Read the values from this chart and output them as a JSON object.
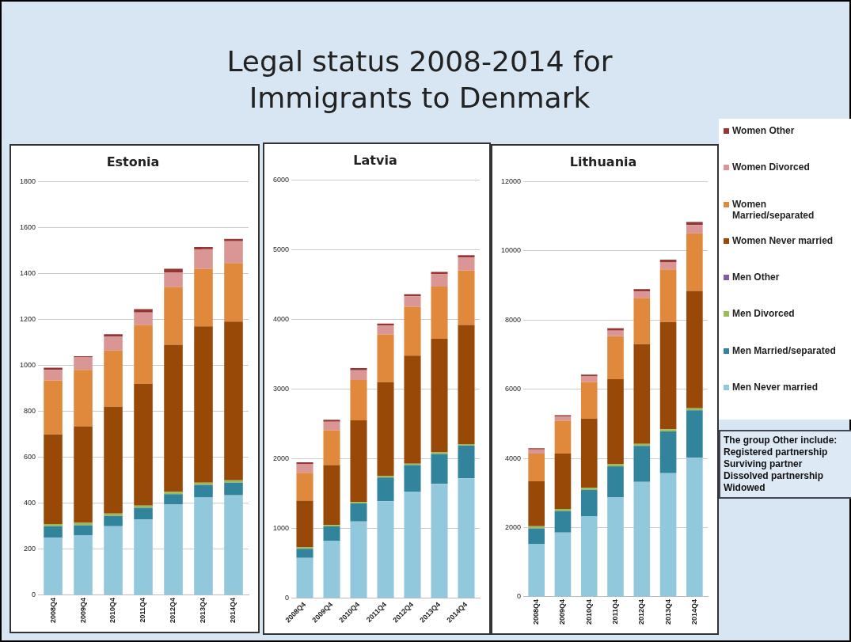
{
  "chart_data": [
    {
      "type": "bar",
      "title": "Estonia",
      "annotations": [
        "Legal status 2008-2014 for Immigrants to Denmark"
      ],
      "stacked": true,
      "grid": "y",
      "categories": [
        "2008Q4",
        "2009Q4",
        "2010Q4",
        "2011Q4",
        "2012Q4",
        "2013Q4",
        "2014Q4"
      ],
      "ylim": [
        0,
        1800
      ],
      "yticks": [
        0,
        200,
        400,
        600,
        800,
        1000,
        1200,
        1400,
        1600,
        1800
      ],
      "series": [
        {
          "color": "#92c8dc",
          "values": [
            250,
            260,
            300,
            330,
            395,
            425,
            435
          ]
        },
        {
          "color": "#31849b",
          "values": [
            50,
            45,
            45,
            50,
            45,
            55,
            55
          ]
        },
        {
          "color": "#9bbb59",
          "values": [
            10,
            10,
            10,
            10,
            10,
            10,
            10
          ]
        },
        {
          "color": "#7f5fa0",
          "values": [
            0,
            0,
            0,
            0,
            0,
            0,
            0
          ]
        },
        {
          "color": "#984807",
          "values": [
            390,
            420,
            465,
            530,
            640,
            680,
            690
          ]
        },
        {
          "color": "#e0883c",
          "values": [
            235,
            245,
            245,
            255,
            250,
            250,
            255
          ]
        },
        {
          "color": "#d99694",
          "values": [
            45,
            55,
            60,
            55,
            65,
            85,
            95
          ]
        },
        {
          "color": "#943634",
          "values": [
            10,
            5,
            10,
            15,
            15,
            10,
            10
          ]
        }
      ]
    },
    {
      "type": "bar",
      "title": "Latvia",
      "stacked": true,
      "grid": "y",
      "categories": [
        "2008Q4",
        "2009Q4",
        "2010Q4",
        "2011Q4",
        "2012Q4",
        "2013Q4",
        "2014Q4"
      ],
      "ylim": [
        0,
        6000
      ],
      "yticks": [
        0,
        1000,
        2000,
        3000,
        4000,
        5000,
        6000
      ],
      "series": [
        {
          "color": "#92c8dc",
          "values": [
            580,
            820,
            1100,
            1390,
            1530,
            1640,
            1720
          ]
        },
        {
          "color": "#31849b",
          "values": [
            130,
            210,
            260,
            340,
            380,
            430,
            470
          ]
        },
        {
          "color": "#9bbb59",
          "values": [
            20,
            20,
            20,
            20,
            20,
            20,
            20
          ]
        },
        {
          "color": "#7f5fa0",
          "values": [
            0,
            0,
            0,
            0,
            0,
            0,
            0
          ]
        },
        {
          "color": "#984807",
          "values": [
            670,
            860,
            1170,
            1350,
            1550,
            1630,
            1710
          ]
        },
        {
          "color": "#e0883c",
          "values": [
            400,
            500,
            580,
            680,
            700,
            750,
            780
          ]
        },
        {
          "color": "#d99694",
          "values": [
            120,
            120,
            140,
            130,
            150,
            180,
            190
          ]
        },
        {
          "color": "#943634",
          "values": [
            30,
            30,
            30,
            30,
            30,
            30,
            30
          ]
        }
      ]
    },
    {
      "type": "bar",
      "title": "Lithuania",
      "annotations": [
        "The group Other include: Registered partnership Surviving partner Dissolved partnership Widowed"
      ],
      "stacked": true,
      "grid": "y",
      "legend": "right",
      "categories": [
        "2008Q4",
        "2009Q4",
        "2010Q4",
        "2011Q4",
        "2012Q4",
        "2013Q4",
        "2014Q4"
      ],
      "ylim": [
        0,
        12000
      ],
      "yticks": [
        0,
        2000,
        4000,
        6000,
        8000,
        10000,
        12000
      ],
      "series": [
        {
          "name": "Men Never married",
          "color": "#92c8dc",
          "values": [
            1520,
            1860,
            2330,
            2870,
            3320,
            3570,
            4020
          ]
        },
        {
          "name": "Men Married/separated",
          "color": "#31849b",
          "values": [
            460,
            620,
            760,
            900,
            1040,
            1210,
            1370
          ]
        },
        {
          "name": "Men Divorced",
          "color": "#9bbb59",
          "values": [
            60,
            60,
            60,
            60,
            60,
            60,
            60
          ]
        },
        {
          "name": "Men Other",
          "color": "#7f5fa0",
          "values": [
            0,
            0,
            0,
            0,
            0,
            0,
            0
          ]
        },
        {
          "name": "Women Never married",
          "color": "#984807",
          "values": [
            1300,
            1600,
            2000,
            2460,
            2880,
            3100,
            3390
          ]
        },
        {
          "name": "Women Married/separated",
          "color": "#e0883c",
          "values": [
            800,
            950,
            1060,
            1240,
            1330,
            1520,
            1660
          ]
        },
        {
          "name": "Women Divorced",
          "color": "#d99694",
          "values": [
            120,
            120,
            160,
            160,
            190,
            200,
            240
          ]
        },
        {
          "name": "Women Other",
          "color": "#943634",
          "values": [
            30,
            40,
            50,
            70,
            70,
            80,
            90
          ]
        }
      ]
    }
  ]
}
